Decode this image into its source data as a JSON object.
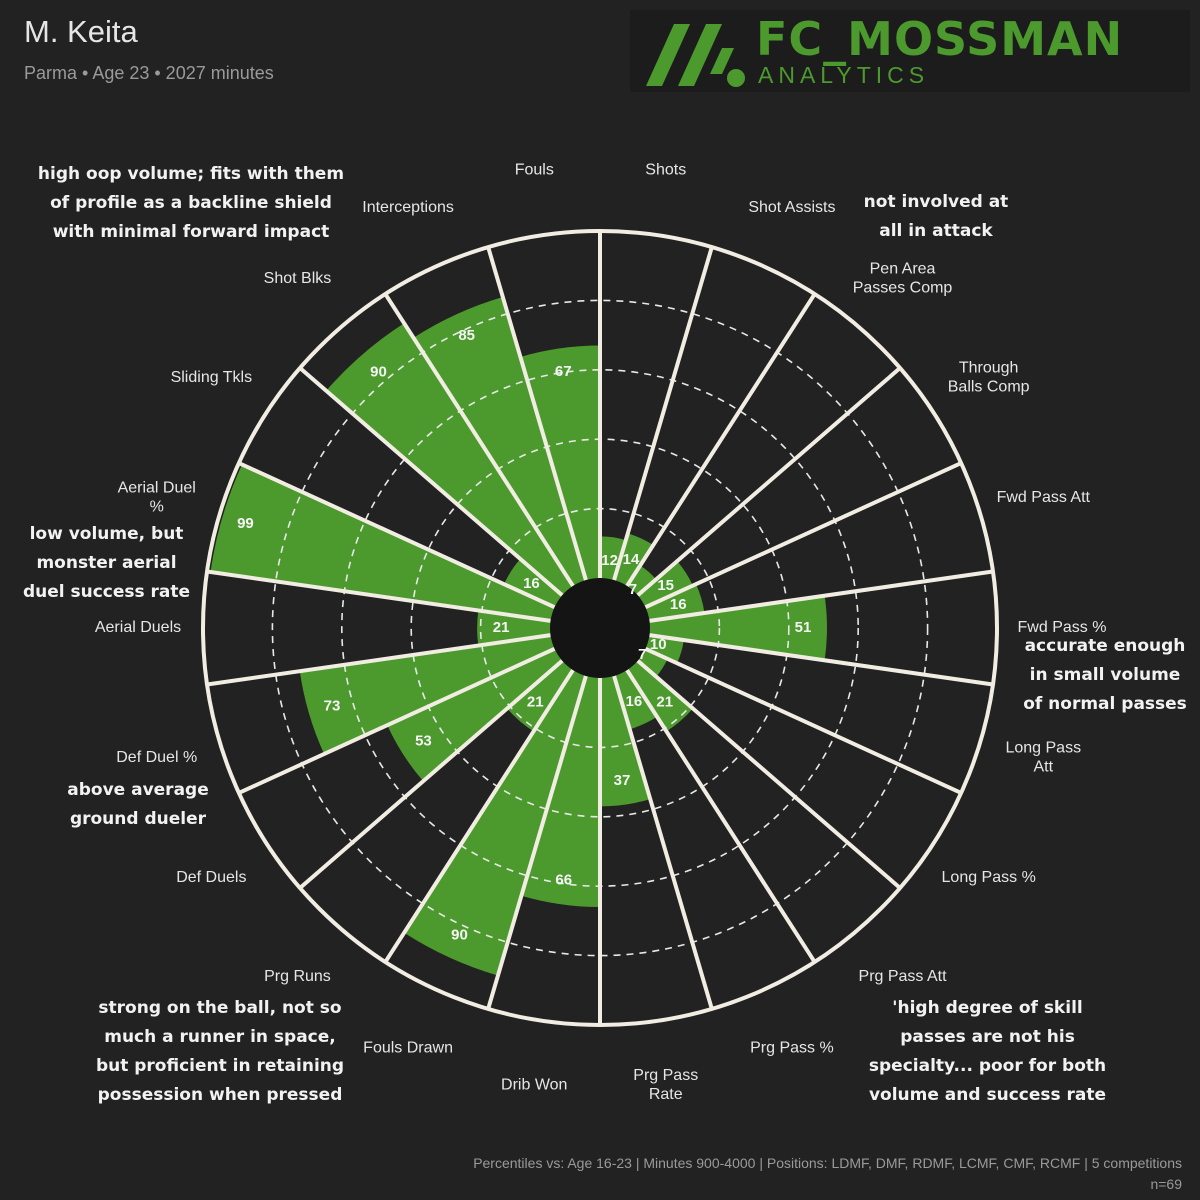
{
  "header": {
    "player_name": "M. Keita",
    "player_meta": "Parma • Age 23 • 2027 minutes"
  },
  "logo": {
    "title": "FC_MOSSMAN",
    "subtitle": "ANALYTICS",
    "icon": "slanted-bars-logo-icon",
    "color": "#4c9a2e"
  },
  "colors": {
    "background": "#222222",
    "bar": "#4c9a2e",
    "ring": "#f2ede2",
    "text": "#e6e6e6",
    "muted": "#9a9a9a"
  },
  "chart_data": {
    "type": "polar-bar",
    "scale": [
      0,
      100
    ],
    "rings": [
      20,
      40,
      60,
      80
    ],
    "grid": true,
    "categories": [
      "Shots",
      "Shot Assists",
      "Pen Area\nPasses Comp",
      "Through\nBalls Comp",
      "Fwd Pass Att",
      "Fwd Pass %",
      "Long Pass\nAtt",
      "Long Pass %",
      "Prg Pass Att",
      "Prg Pass %",
      "Prg Pass\nRate",
      "Drib Won",
      "Fouls Drawn",
      "Prg Runs",
      "Def Duels",
      "Def Duel %",
      "Aerial Duels",
      "Aerial Duel\n%",
      "Sliding Tkls",
      "Shot Blks",
      "Interceptions",
      "Fouls"
    ],
    "values": [
      12,
      14,
      7,
      15,
      16,
      51,
      10,
      7,
      21,
      16,
      37,
      66,
      90,
      21,
      53,
      73,
      21,
      99,
      16,
      90,
      85,
      67
    ]
  },
  "annotations": [
    {
      "id": "defending",
      "lines": [
        "high oop volume; fits with them",
        "of profile as a backline shield",
        "with minimal forward impact"
      ]
    },
    {
      "id": "attack",
      "lines": [
        "not involved at",
        "all in attack"
      ]
    },
    {
      "id": "aerial",
      "lines": [
        "low volume, but",
        "monster aerial",
        "duel success rate"
      ]
    },
    {
      "id": "fwd-pass",
      "lines": [
        "accurate enough",
        "in small volume",
        "of normal passes"
      ]
    },
    {
      "id": "ground",
      "lines": [
        "above average",
        "ground dueler"
      ]
    },
    {
      "id": "carrying",
      "lines": [
        "strong on the ball, not so",
        "much a runner in space,",
        "but proficient in retaining",
        "possession when pressed"
      ]
    },
    {
      "id": "progression",
      "lines": [
        "'high degree of skill",
        "passes are not his",
        "specialty... poor for both",
        "volume and success rate"
      ]
    }
  ],
  "footer": {
    "comparison": "Percentiles vs: Age 16-23 | Minutes 900-4000 | Positions: LDMF, DMF, RDMF, LCMF, CMF, RCMF | 5 competitions",
    "sample": "n=69"
  }
}
